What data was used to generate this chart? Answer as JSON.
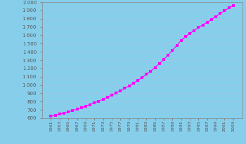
{
  "years": [
    1961,
    1962,
    1963,
    1964,
    1965,
    1966,
    1967,
    1968,
    1969,
    1970,
    1971,
    1972,
    1973,
    1974,
    1975,
    1976,
    1977,
    1978,
    1979,
    1980,
    1981,
    1982,
    1983,
    1984,
    1985,
    1986,
    1987,
    1988,
    1989,
    1990,
    1991,
    1992,
    1993,
    1994,
    1995,
    1996,
    1997,
    1998,
    1999,
    2000,
    2001,
    2002,
    2003
  ],
  "population": [
    621,
    634,
    647,
    661,
    676,
    692,
    708,
    726,
    744,
    763,
    784,
    805,
    827,
    851,
    876,
    902,
    930,
    959,
    990,
    1022,
    1055,
    1090,
    1128,
    1168,
    1211,
    1258,
    1308,
    1362,
    1419,
    1478,
    1539,
    1583,
    1622,
    1658,
    1693,
    1726,
    1758,
    1790,
    1826,
    1862,
    1896,
    1930,
    1961
  ],
  "line_color": "#ff00ff",
  "marker_color": "#ff00ff",
  "bg_color": "#87ceeb",
  "plot_bg_color": "#87ceeb",
  "ylim": [
    600,
    2000
  ],
  "yticks": [
    600,
    700,
    800,
    900,
    1000,
    1100,
    1200,
    1300,
    1400,
    1500,
    1600,
    1700,
    1800,
    1900,
    2000
  ],
  "grid_color": "#a0c8e8",
  "spine_color": "#888888"
}
